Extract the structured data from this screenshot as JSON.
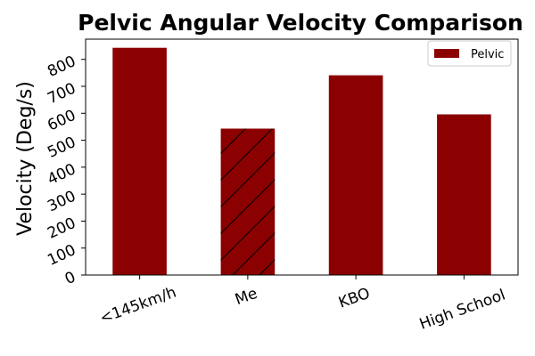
{
  "chart_data": {
    "type": "bar",
    "title": "Pelvic Angular Velocity Comparison",
    "xlabel": "",
    "ylabel": "Velocity (Deg/s)",
    "categories": [
      "<145km/h",
      "Me",
      "KBO",
      "High School"
    ],
    "series": [
      {
        "name": "Pelvic",
        "values": [
          843,
          543,
          741,
          596
        ]
      }
    ],
    "hatched_category": "Me",
    "yticks": [
      0,
      100,
      200,
      300,
      400,
      500,
      600,
      700,
      800
    ],
    "ylim": [
      0,
      875
    ],
    "grid": false,
    "legend_position": "top-right",
    "bar_color": "#8b0000"
  }
}
